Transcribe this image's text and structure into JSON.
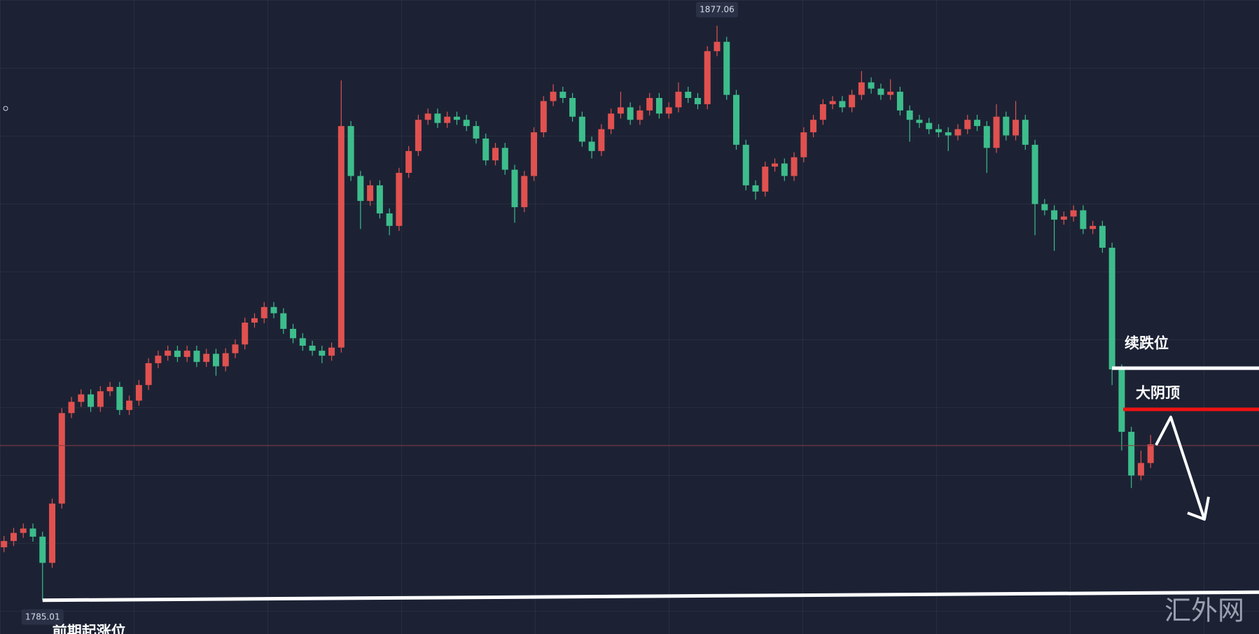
{
  "chart_data": {
    "type": "candlestick",
    "up_color": "#e0514f",
    "down_color": "#3dbd8c",
    "ylim": [
      1779.6,
      1881.2
    ],
    "open": [
      1793.5,
      1794.5,
      1795.8,
      1796.5,
      1795.2,
      1791.0,
      1800.5,
      1815.0,
      1816.8,
      1818.0,
      1816.0,
      1818.5,
      1819.2,
      1815.5,
      1817.0,
      1819.5,
      1823.0,
      1824.2,
      1825.0,
      1824.0,
      1825.0,
      1823.2,
      1824.5,
      1822.5,
      1824.6,
      1826.0,
      1829.5,
      1830.2,
      1832.0,
      1831.0,
      1828.5,
      1827.0,
      1825.8,
      1825.0,
      1824.2,
      1825.5,
      1861.0,
      1853.0,
      1849.0,
      1851.5,
      1847.0,
      1845.0,
      1853.5,
      1857.0,
      1862.0,
      1863.0,
      1861.5,
      1862.5,
      1862.0,
      1861.0,
      1859.0,
      1855.5,
      1857.5,
      1854.0,
      1848.0,
      1853.0,
      1860.0,
      1865.0,
      1866.5,
      1865.5,
      1862.5,
      1858.5,
      1857.0,
      1860.5,
      1863.0,
      1864.0,
      1862.0,
      1863.5,
      1865.5,
      1863.0,
      1864.0,
      1866.5,
      1865.5,
      1864.5,
      1873.0,
      1874.5,
      1866.0,
      1858.0,
      1851.5,
      1850.5,
      1854.5,
      1855.0,
      1853.0,
      1856.0,
      1860.0,
      1862.0,
      1864.5,
      1865.0,
      1864.0,
      1866.0,
      1868.0,
      1867.0,
      1866.0,
      1866.5,
      1863.5,
      1862.0,
      1861.5,
      1860.5,
      1860.0,
      1859.5,
      1860.5,
      1862.0,
      1861.0,
      1857.5,
      1862.5,
      1859.5,
      1862.0,
      1858.0,
      1848.5,
      1847.5,
      1846.0,
      1846.5,
      1847.5,
      1844.5,
      1845.0,
      1841.5,
      1822.0,
      1812.0,
      1805.0,
      1807.0
    ],
    "high": [
      1795.3,
      1796.6,
      1797.3,
      1797.3,
      1796.0,
      1801.3,
      1815.8,
      1817.6,
      1818.8,
      1818.8,
      1819.3,
      1820.0,
      1820.0,
      1817.8,
      1820.3,
      1823.8,
      1825.0,
      1825.8,
      1825.8,
      1825.8,
      1825.8,
      1825.3,
      1825.3,
      1825.4,
      1826.8,
      1830.3,
      1831.0,
      1832.8,
      1832.8,
      1831.8,
      1829.3,
      1827.8,
      1826.6,
      1825.8,
      1826.3,
      1868.3,
      1861.8,
      1853.8,
      1852.3,
      1852.3,
      1847.8,
      1854.3,
      1857.8,
      1862.8,
      1863.8,
      1863.8,
      1863.3,
      1863.3,
      1862.8,
      1861.8,
      1859.8,
      1858.3,
      1858.3,
      1854.8,
      1853.8,
      1860.8,
      1865.8,
      1867.7,
      1867.3,
      1866.3,
      1863.3,
      1859.3,
      1861.3,
      1863.8,
      1866.5,
      1864.8,
      1864.3,
      1866.3,
      1866.3,
      1864.8,
      1868.0,
      1867.3,
      1866.3,
      1873.8,
      1877.06,
      1875.3,
      1866.8,
      1858.8,
      1852.3,
      1855.3,
      1855.8,
      1855.8,
      1856.8,
      1860.8,
      1862.8,
      1865.3,
      1865.8,
      1865.8,
      1866.8,
      1869.8,
      1868.8,
      1867.8,
      1868.5,
      1867.3,
      1864.3,
      1862.8,
      1862.3,
      1861.3,
      1860.8,
      1861.3,
      1862.8,
      1862.8,
      1861.8,
      1864.5,
      1863.3,
      1865.0,
      1862.8,
      1858.8,
      1849.3,
      1848.3,
      1847.3,
      1848.3,
      1848.3,
      1845.8,
      1845.8,
      1842.3,
      1822.8,
      1812.8,
      1809.0,
      1811.5
    ],
    "low": [
      1792.7,
      1793.7,
      1795.0,
      1794.4,
      1785.01,
      1790.2,
      1799.7,
      1814.2,
      1816.0,
      1815.2,
      1815.2,
      1817.7,
      1814.7,
      1814.7,
      1816.2,
      1818.7,
      1822.2,
      1823.4,
      1823.2,
      1823.2,
      1822.4,
      1822.4,
      1821.0,
      1821.7,
      1823.8,
      1825.2,
      1828.7,
      1829.4,
      1830.2,
      1827.7,
      1826.2,
      1825.0,
      1824.2,
      1823.0,
      1823.4,
      1824.7,
      1852.2,
      1844.5,
      1848.2,
      1846.2,
      1843.5,
      1844.2,
      1852.7,
      1856.2,
      1861.2,
      1860.7,
      1860.7,
      1861.2,
      1860.2,
      1858.2,
      1854.7,
      1854.7,
      1853.2,
      1845.5,
      1847.2,
      1852.2,
      1859.2,
      1864.2,
      1864.7,
      1861.7,
      1857.7,
      1855.8,
      1856.2,
      1859.7,
      1862.2,
      1861.2,
      1861.2,
      1862.7,
      1862.2,
      1862.2,
      1863.2,
      1864.7,
      1863.7,
      1863.7,
      1872.2,
      1865.2,
      1857.2,
      1850.7,
      1849.2,
      1849.7,
      1853.7,
      1852.2,
      1852.2,
      1855.2,
      1859.2,
      1861.2,
      1863.7,
      1863.2,
      1863.2,
      1865.2,
      1866.2,
      1865.2,
      1865.2,
      1862.7,
      1858.5,
      1860.7,
      1859.7,
      1859.2,
      1857.0,
      1858.7,
      1859.7,
      1860.2,
      1853.5,
      1856.7,
      1858.7,
      1858.7,
      1857.2,
      1843.5,
      1846.7,
      1841.0,
      1845.2,
      1845.7,
      1843.7,
      1843.7,
      1840.7,
      1819.5,
      1809.0,
      1803.0,
      1804.2,
      1806.2
    ],
    "close": [
      1794.5,
      1795.8,
      1796.5,
      1795.2,
      1791.0,
      1800.5,
      1815.0,
      1816.8,
      1818.0,
      1816.0,
      1818.5,
      1819.2,
      1815.5,
      1817.0,
      1819.5,
      1823.0,
      1824.2,
      1825.0,
      1824.0,
      1825.0,
      1823.2,
      1824.5,
      1822.5,
      1824.6,
      1826.0,
      1829.5,
      1830.2,
      1832.0,
      1831.0,
      1828.5,
      1827.0,
      1825.8,
      1825.0,
      1824.2,
      1825.5,
      1861.0,
      1853.0,
      1849.0,
      1851.5,
      1847.0,
      1845.0,
      1853.5,
      1857.0,
      1862.0,
      1863.0,
      1861.5,
      1862.5,
      1862.0,
      1861.0,
      1859.0,
      1855.5,
      1857.5,
      1854.0,
      1848.0,
      1853.0,
      1860.0,
      1865.0,
      1866.5,
      1865.5,
      1862.5,
      1858.5,
      1857.0,
      1860.5,
      1863.0,
      1864.0,
      1862.0,
      1863.5,
      1865.5,
      1863.0,
      1864.0,
      1866.5,
      1865.5,
      1864.5,
      1873.0,
      1874.5,
      1866.0,
      1858.0,
      1851.5,
      1850.5,
      1854.5,
      1855.0,
      1853.0,
      1856.0,
      1860.0,
      1862.0,
      1864.5,
      1865.0,
      1864.0,
      1866.0,
      1868.0,
      1867.0,
      1866.0,
      1866.5,
      1863.5,
      1862.0,
      1861.5,
      1860.5,
      1860.0,
      1859.5,
      1860.5,
      1862.0,
      1861.0,
      1857.5,
      1862.5,
      1859.5,
      1862.0,
      1858.0,
      1848.5,
      1847.5,
      1846.0,
      1846.5,
      1847.5,
      1844.5,
      1845.0,
      1841.5,
      1822.0,
      1812.0,
      1805.0,
      1807.0,
      1810.0
    ],
    "max_label": "1877.06",
    "min_label": "1785.01",
    "levels": [
      {
        "label": "续跌位",
        "value": 1822.2,
        "color": "#ffffff"
      },
      {
        "label": "大阴顶",
        "value": 1815.6,
        "color": "#ee1111"
      }
    ],
    "price_line": {
      "value": 1809.8,
      "color": "#8a3a44"
    },
    "support": [
      1785.01,
      1786.3
    ],
    "support_label": "前期起涨位",
    "watermark": "汇外网"
  }
}
